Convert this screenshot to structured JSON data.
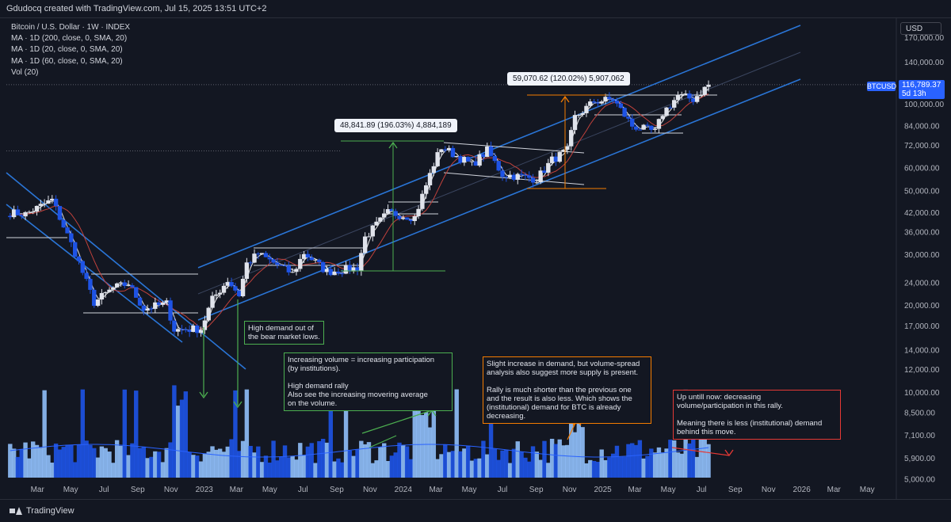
{
  "header": {
    "attribution": "Gdudocq created with TradingView.com, Jul 15, 2025 13:51 UTC+2"
  },
  "legend": {
    "symbol": "Bitcoin / U.S. Dollar · 1W · INDEX",
    "ma200": "MA · 1D (200, close, 0, SMA, 20)",
    "ma20": "MA · 1D (20, close, 0, SMA, 20)",
    "ma60": "MA · 1D (60, close, 0, SMA, 20)",
    "vol": "Vol (20)"
  },
  "axis": {
    "currency_button": "USD",
    "symbol_tag": "BTCUSD",
    "last_price": "116,789.37",
    "countdown": "5d 13h"
  },
  "footer": {
    "brand": "TradingView"
  },
  "measures": {
    "first": "48,841.89 (196.03%) 4,884,189",
    "second": "59,070.62 (120.02%) 5,907,062"
  },
  "notes": {
    "high_demand": [
      "High demand out of",
      "the bear market lows."
    ],
    "volume": [
      "Increasing volume = increasing participation",
      "(by institutions).",
      "",
      "High demand rally",
      "Also see the increasing movering average",
      "on the volume."
    ],
    "supply": [
      "Slight increase in demand, but volume-spread",
      "analysis also suggest more supply is present.",
      "",
      "Rally is much shorter than the previous one",
      "and the result is also less. Which shows the",
      "(institutional) demand for BTC is already",
      "decreasing."
    ],
    "decreasing": [
      "Up untill now: decreasing",
      "volume/participation in this rally.",
      "",
      "Meaning there is less (institutional) demand",
      "behind this move."
    ]
  },
  "colors": {
    "background": "#131722",
    "up": "#e0e3eb",
    "down": "#1e53e5",
    "ma_white": "#e8e8e8",
    "ma_red": "#c2423c",
    "channel": "#2a75d6",
    "vol_light": "#90bff9",
    "vol_dark": "#1e53e5",
    "green": "#4caf50",
    "orange": "#f57c00",
    "red": "#e53935"
  },
  "chart_data": {
    "type": "candlestick",
    "title": "Bitcoin / U.S. Dollar · 1W · INDEX",
    "scale": "log",
    "ylim": [
      4400,
      190000
    ],
    "y_ticks": [
      "170,000.00",
      "140,000.00",
      "100,000.00",
      "84,000.00",
      "72,000.00",
      "60,000.00",
      "50,000.00",
      "42,000.00",
      "36,000.00",
      "30,000.00",
      "24,000.00",
      "20,000.00",
      "17,000.00",
      "14,000.00",
      "12,000.00",
      "10,000.00",
      "8,500.00",
      "7,100.00",
      "5,900.00",
      "5,000.00"
    ],
    "x_ticks": [
      "Mar",
      "May",
      "Jul",
      "Sep",
      "Nov",
      "2023",
      "Mar",
      "May",
      "Jul",
      "Sep",
      "Nov",
      "2024",
      "Mar",
      "May",
      "Jul",
      "Sep",
      "Nov",
      "2025",
      "Mar",
      "May",
      "Jul",
      "Sep",
      "Nov",
      "2026",
      "Mar",
      "May"
    ],
    "price_anchors": [
      {
        "date": "2022-01-10",
        "price": 42000
      },
      {
        "date": "2022-02-07",
        "price": 41500
      },
      {
        "date": "2022-03-28",
        "price": 46500
      },
      {
        "date": "2022-05-09",
        "price": 30500
      },
      {
        "date": "2022-06-13",
        "price": 20500
      },
      {
        "date": "2022-07-18",
        "price": 23000
      },
      {
        "date": "2022-08-15",
        "price": 23800
      },
      {
        "date": "2022-09-12",
        "price": 19500
      },
      {
        "date": "2022-10-24",
        "price": 20300
      },
      {
        "date": "2022-11-07",
        "price": 16500
      },
      {
        "date": "2022-12-26",
        "price": 16600
      },
      {
        "date": "2023-01-16",
        "price": 21000
      },
      {
        "date": "2023-02-13",
        "price": 24500
      },
      {
        "date": "2023-03-06",
        "price": 21800
      },
      {
        "date": "2023-03-20",
        "price": 28000
      },
      {
        "date": "2023-04-10",
        "price": 30200
      },
      {
        "date": "2023-06-12",
        "price": 25800
      },
      {
        "date": "2023-07-03",
        "price": 30500
      },
      {
        "date": "2023-08-14",
        "price": 26200
      },
      {
        "date": "2023-10-09",
        "price": 27000
      },
      {
        "date": "2023-10-23",
        "price": 34500
      },
      {
        "date": "2023-12-04",
        "price": 42000
      },
      {
        "date": "2024-01-22",
        "price": 40500
      },
      {
        "date": "2024-02-26",
        "price": 62000
      },
      {
        "date": "2024-03-11",
        "price": 71000
      },
      {
        "date": "2024-05-06",
        "price": 61500
      },
      {
        "date": "2024-06-03",
        "price": 69000
      },
      {
        "date": "2024-07-01",
        "price": 57000
      },
      {
        "date": "2024-08-05",
        "price": 56000
      },
      {
        "date": "2024-09-02",
        "price": 55000
      },
      {
        "date": "2024-09-30",
        "price": 64000
      },
      {
        "date": "2024-10-28",
        "price": 69000
      },
      {
        "date": "2024-11-11",
        "price": 90000
      },
      {
        "date": "2024-12-16",
        "price": 102000
      },
      {
        "date": "2025-01-20",
        "price": 104000
      },
      {
        "date": "2025-02-24",
        "price": 84000
      },
      {
        "date": "2025-04-07",
        "price": 80000
      },
      {
        "date": "2025-04-21",
        "price": 93000
      },
      {
        "date": "2025-05-19",
        "price": 107000
      },
      {
        "date": "2025-06-16",
        "price": 104000
      },
      {
        "date": "2025-07-14",
        "price": 116789.37
      }
    ],
    "series": [
      {
        "name": "MA · 1D (200, close, 0, SMA, 20)",
        "color": "#c2423c"
      },
      {
        "name": "MA · 1D (20, close, 0, SMA, 20)",
        "color": "#e8e8e8"
      },
      {
        "name": "Vol (20)",
        "type": "bar"
      }
    ],
    "measurements": [
      {
        "label": "48,841.89 (196.03%) 4,884,189",
        "from": 25000,
        "to": 73000
      },
      {
        "label": "59,070.62 (120.02%) 5,907,062",
        "from": 49000,
        "to": 108000
      }
    ]
  }
}
